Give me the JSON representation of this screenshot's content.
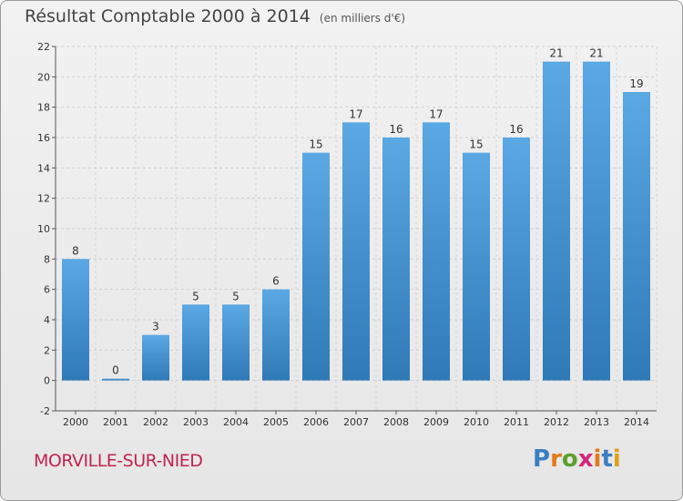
{
  "header": {
    "title": "Résultat Comptable 2000 à 2014",
    "unit": "(en milliers d'€)"
  },
  "footer": {
    "city": "MORVILLE-SUR-NIED",
    "brand": "Proxiti"
  },
  "colors": {
    "bar_top": "#5aa8e4",
    "bar_bottom": "#2f79b7",
    "city": "#c0244f",
    "brand_letters": [
      "#3a7fc2",
      "#e07b19",
      "#5aa02c",
      "#d4267a",
      "#e07b19",
      "#3a7fc2",
      "#e0a019"
    ]
  },
  "chart_data": {
    "type": "bar",
    "title": "Résultat Comptable 2000 à 2014",
    "subtitle": "(en milliers d'€)",
    "xlabel": "",
    "ylabel": "",
    "categories": [
      "2000",
      "2001",
      "2002",
      "2003",
      "2004",
      "2005",
      "2006",
      "2007",
      "2008",
      "2009",
      "2010",
      "2011",
      "2012",
      "2013",
      "2014"
    ],
    "values": [
      8,
      0,
      3,
      5,
      5,
      6,
      15,
      17,
      16,
      17,
      15,
      16,
      21,
      21,
      19
    ],
    "ylim": [
      -2,
      22
    ],
    "yticks": [
      -2,
      0,
      2,
      4,
      6,
      8,
      10,
      12,
      14,
      16,
      18,
      20,
      22
    ],
    "grid": true
  }
}
